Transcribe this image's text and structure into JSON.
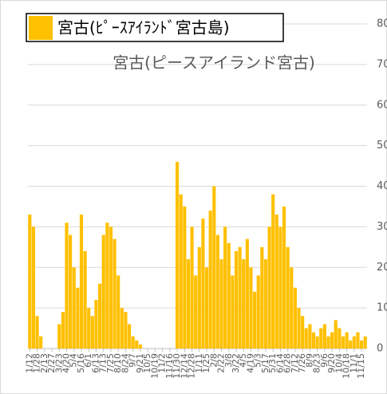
{
  "chart_data": {
    "type": "bar",
    "title": "宮古(ピースアイランド宮古)",
    "legend_label": "宮古(ﾋﾟｰｽｱｲﾗﾝﾄﾞ宮古島)",
    "color": "#ffc000",
    "grid": true,
    "ylim": [
      0,
      80
    ],
    "yticks": [
      0,
      10,
      20,
      30,
      40,
      50,
      60,
      70,
      80
    ],
    "categories": [
      "1/12",
      null,
      "1/28",
      null,
      "2/13",
      null,
      "2/27",
      null,
      "3/23",
      null,
      "4/20",
      null,
      "5/4",
      null,
      "5/16",
      null,
      "6/1",
      null,
      "6/13",
      null,
      "7/13",
      null,
      "7/25",
      null,
      "8/10",
      null,
      "8/24",
      null,
      "9/7",
      null,
      "9/21",
      null,
      "10/5",
      null,
      "10/19",
      null,
      "11/2",
      null,
      "11/16",
      null,
      "11/30",
      null,
      "12/14",
      null,
      "12/28",
      null,
      "1/11",
      null,
      "1/25",
      null,
      "2/8",
      null,
      "2/22",
      null,
      "3/8",
      null,
      "3/22",
      null,
      "4/5",
      null,
      "4/19",
      null,
      "5/3",
      null,
      "5/17",
      null,
      "5/31",
      null,
      "6/14",
      null,
      "6/28",
      null,
      "7/12",
      null,
      "7/26",
      null,
      "8/9",
      null,
      "8/23",
      null,
      "9/6",
      null,
      "9/20",
      null,
      "10/4",
      null,
      "10/18",
      null,
      "11/1",
      null,
      "11/15",
      null
    ],
    "values": [
      33,
      30,
      8,
      3,
      0,
      0,
      0,
      0,
      6,
      9,
      31,
      28,
      20,
      15,
      33,
      24,
      10,
      8,
      12,
      16,
      28,
      31,
      30,
      27,
      18,
      10,
      9,
      6,
      3,
      2,
      1,
      0,
      0,
      0,
      0,
      0,
      0,
      0,
      0,
      0,
      46,
      38,
      35,
      22,
      30,
      18,
      25,
      32,
      20,
      34,
      40,
      28,
      22,
      30,
      26,
      18,
      24,
      25,
      22,
      27,
      20,
      14,
      18,
      25,
      22,
      30,
      38,
      33,
      30,
      35,
      25,
      20,
      15,
      10,
      8,
      5,
      6,
      4,
      3,
      5,
      6,
      3,
      4,
      7,
      5,
      3,
      4,
      2,
      3,
      4,
      2,
      3
    ]
  }
}
